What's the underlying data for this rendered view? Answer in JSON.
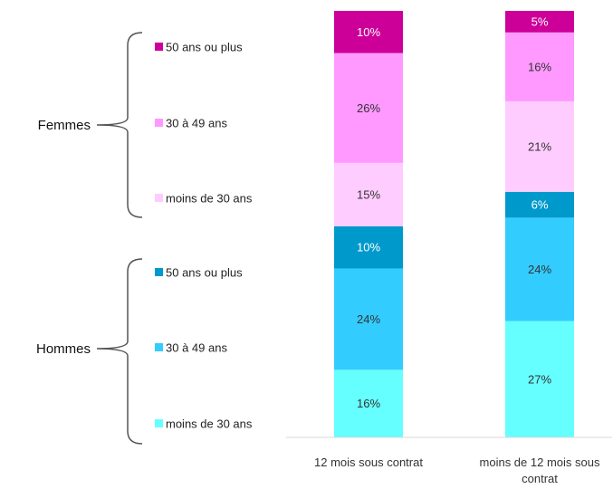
{
  "chart_data": {
    "type": "bar",
    "stacked": true,
    "categories": [
      "12 mois sous contrat",
      "moins de 12 mois sous contrat"
    ],
    "groups": [
      {
        "label": "Femmes",
        "series_indexes": [
          5,
          4,
          3
        ]
      },
      {
        "label": "Hommes",
        "series_indexes": [
          2,
          1,
          0
        ]
      }
    ],
    "series": [
      {
        "name": "moins de 30 ans",
        "group": "Hommes",
        "color": "#66FFFF",
        "values": [
          16,
          27
        ],
        "labels": [
          "16%",
          "27%"
        ]
      },
      {
        "name": "30 à 49 ans",
        "group": "Hommes",
        "color": "#33CCFF",
        "values": [
          24,
          24
        ],
        "labels": [
          "24%",
          "24%"
        ]
      },
      {
        "name": "50 ans ou plus",
        "group": "Hommes",
        "color": "#0099CC",
        "values": [
          10,
          6
        ],
        "labels": [
          "10%",
          "6%"
        ]
      },
      {
        "name": "moins de 30 ans",
        "group": "Femmes",
        "color": "#FFCCFF",
        "values": [
          15,
          21
        ],
        "labels": [
          "15%",
          "21%"
        ]
      },
      {
        "name": "30 à 49 ans",
        "group": "Femmes",
        "color": "#FF99FF",
        "values": [
          26,
          16
        ],
        "labels": [
          "26%",
          "16%"
        ]
      },
      {
        "name": "50 ans ou plus",
        "group": "Femmes",
        "color": "#CC0099",
        "values": [
          10,
          5
        ],
        "labels": [
          "10%",
          "5%"
        ]
      }
    ],
    "label_colors": [
      "#333333",
      "#333333",
      "#ffffff",
      "#333333",
      "#333333",
      "#ffffff"
    ],
    "ylim": [
      0,
      100
    ],
    "grid": false,
    "legend_position": "left, grouped with braces"
  }
}
